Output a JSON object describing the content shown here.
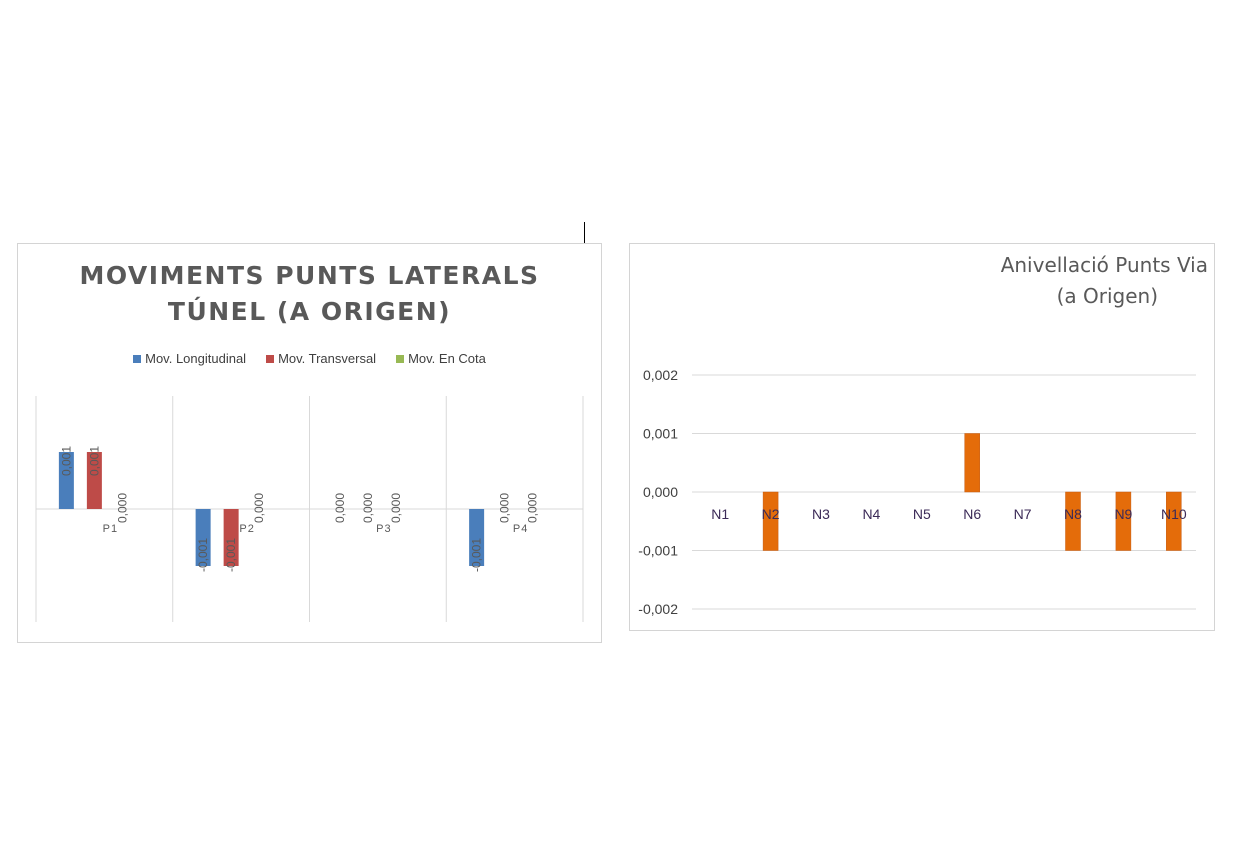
{
  "chart_data": [
    {
      "type": "bar",
      "title_lines": [
        "MOVIMENTS PUNTS LATERALS",
        "TÚNEL (A ORIGEN)"
      ],
      "categories": [
        "P1",
        "P2",
        "P3",
        "P4"
      ],
      "series": [
        {
          "name": "Mov. Longitudinal",
          "color": "#4a7ebb",
          "values": [
            0.001,
            -0.001,
            0.0,
            -0.001
          ],
          "labels": [
            "0,001",
            "-0,001",
            "0,000",
            "-0,001"
          ]
        },
        {
          "name": "Mov. Transversal",
          "color": "#be4b48",
          "values": [
            0.001,
            -0.001,
            0.0,
            0.0
          ],
          "labels": [
            "0,001",
            "-0,001",
            "0,000",
            "0,000"
          ]
        },
        {
          "name": "Mov. En Cota",
          "color": "#98b954",
          "values": [
            0.0,
            0.0,
            0.0,
            0.0
          ],
          "labels": [
            "0,000",
            "0,000",
            "0,000",
            "0,000"
          ]
        }
      ],
      "ylim": [
        -0.002,
        0.002
      ],
      "legend_position": "top",
      "grid": "vertical category separators"
    },
    {
      "type": "bar",
      "title_lines": [
        "Anivellació Punts Via",
        "(a Origen)"
      ],
      "categories": [
        "N1",
        "N2",
        "N3",
        "N4",
        "N5",
        "N6",
        "N7",
        "N8",
        "N9",
        "N10"
      ],
      "series": [
        {
          "color": "#e46c0a",
          "values": [
            0,
            -0.001,
            0,
            0,
            0,
            0.001,
            0,
            -0.001,
            -0.001,
            -0.001
          ]
        }
      ],
      "yticks": [
        "0,002",
        "0,001",
        "0,000",
        "-0,001",
        "-0,002"
      ],
      "ylim": [
        -0.002,
        0.002
      ],
      "grid": true
    }
  ]
}
